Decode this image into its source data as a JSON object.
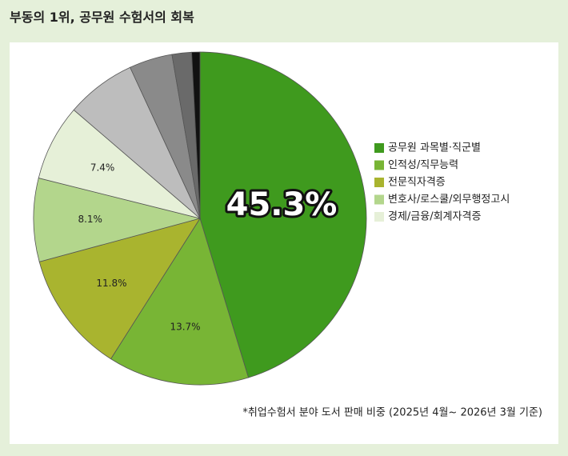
{
  "header": {
    "title": "부동의 1위, 공무원 수험서의 회복"
  },
  "chart_data": {
    "type": "pie",
    "categories": [
      "공무원 과목별·직군별",
      "인적성/직무능력",
      "전문직자격증",
      "변호사/로스쿨/외무행정고시",
      "경제/금융/회계자격증",
      null,
      null,
      null,
      null
    ],
    "values": [
      45.3,
      13.7,
      11.8,
      8.1,
      7.4,
      6.8,
      4.2,
      1.9,
      0.8
    ],
    "value_labels": [
      "45.3%",
      "13.7%",
      "11.8%",
      "8.1%",
      "7.4%",
      null,
      null,
      null,
      null
    ],
    "colors": [
      "#3f9a1e",
      "#78b535",
      "#a9b42f",
      "#b3d68c",
      "#e6f0d8",
      "#bdbdbd",
      "#8a8a8a",
      "#6a6a6a",
      "#111111"
    ],
    "note": "*취업수험서 분야 도서 판매 비중 (2025년 4월~ 2026년 3월 기준)"
  }
}
